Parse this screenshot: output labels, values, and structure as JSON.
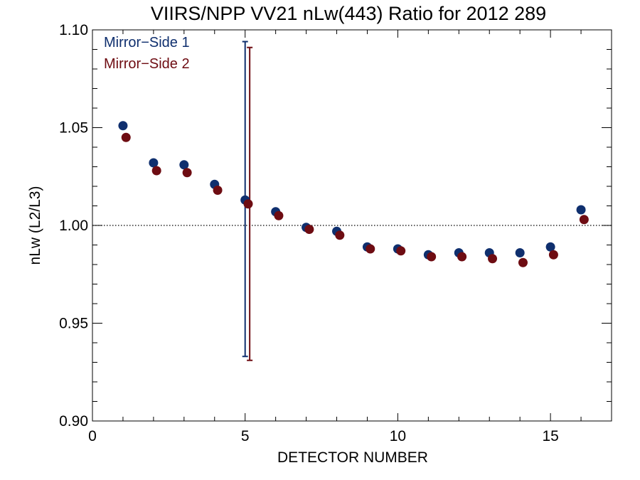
{
  "chart_data": {
    "type": "scatter",
    "title": "VIIRS/NPP VV21 nLw(443) Ratio for 2012 289",
    "xlabel": "DETECTOR NUMBER",
    "ylabel": "nLw (L2/L3)",
    "xlim": [
      0,
      17
    ],
    "ylim": [
      0.9,
      1.1
    ],
    "x_ticks": [
      0,
      5,
      10,
      15
    ],
    "x_tick_labels": [
      "0",
      "5",
      "10",
      "15"
    ],
    "y_ticks": [
      0.9,
      0.95,
      1.0,
      1.05,
      1.1
    ],
    "y_tick_labels": [
      "0.90",
      "0.95",
      "1.00",
      "1.05",
      "1.10"
    ],
    "reference_line": 1.0,
    "legend_position": "top-left",
    "series": [
      {
        "name": "Mirror−Side 1",
        "color": "#0f2f6e",
        "x": [
          1,
          2,
          3,
          4,
          5,
          6,
          7,
          8,
          9,
          10,
          11,
          12,
          13,
          14,
          15,
          16
        ],
        "values": [
          1.051,
          1.032,
          1.031,
          1.021,
          1.013,
          1.007,
          0.999,
          0.997,
          0.989,
          0.988,
          0.985,
          0.986,
          0.986,
          0.986,
          0.989,
          1.008
        ],
        "errorbar": {
          "x": 5,
          "low": 0.933,
          "high": 1.094
        }
      },
      {
        "name": "Mirror−Side 2",
        "color": "#6e0c12",
        "x": [
          1.1,
          2.1,
          3.1,
          4.1,
          5.1,
          6.1,
          7.1,
          8.1,
          9.1,
          10.1,
          11.1,
          12.1,
          13.1,
          14.1,
          15.1,
          16.1
        ],
        "values": [
          1.045,
          1.028,
          1.027,
          1.018,
          1.011,
          1.005,
          0.998,
          0.995,
          0.988,
          0.987,
          0.984,
          0.984,
          0.983,
          0.981,
          0.985,
          1.003
        ],
        "errorbar": {
          "x": 5.15,
          "low": 0.931,
          "high": 1.091
        }
      }
    ]
  }
}
